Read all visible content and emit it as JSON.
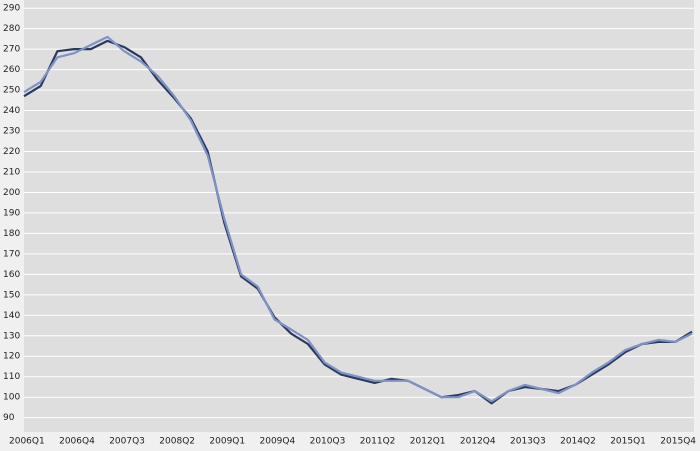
{
  "chart_data": {
    "type": "line",
    "categories": [
      "2006Q1",
      null,
      null,
      "2006Q4",
      null,
      null,
      "2007Q3",
      null,
      null,
      "2008Q2",
      null,
      null,
      "2009Q1",
      null,
      null,
      "2009Q4",
      null,
      null,
      "2010Q3",
      null,
      null,
      "2011Q2",
      null,
      null,
      "2012Q1",
      null,
      null,
      "2012Q4",
      null,
      null,
      "2013Q3",
      null,
      null,
      "2014Q2",
      null,
      null,
      "2015Q1",
      null,
      null,
      "2015Q4",
      null
    ],
    "series": [
      {
        "color": "#2b3a5c",
        "values": [
          247,
          252,
          269,
          270,
          270,
          274,
          271,
          266,
          255,
          246,
          236,
          220,
          185,
          159,
          153,
          139,
          131,
          126,
          116,
          111,
          109,
          107,
          109,
          108,
          104,
          100,
          101,
          103,
          97,
          103,
          105,
          104,
          103,
          106,
          111,
          116,
          122,
          126,
          127,
          127,
          132
        ]
      },
      {
        "color": "#7f93c4",
        "values": [
          249,
          254,
          266,
          268,
          272,
          276,
          269,
          264,
          257,
          247,
          235,
          218,
          187,
          160,
          154,
          138,
          133,
          128,
          117,
          112,
          110,
          108,
          108,
          108,
          104,
          100,
          100,
          103,
          98,
          103,
          106,
          104,
          102,
          106,
          112,
          117,
          123,
          126,
          128,
          127,
          131
        ]
      }
    ],
    "ylim": [
      83,
      294
    ],
    "yticks": [
      90,
      100,
      110,
      120,
      130,
      140,
      150,
      160,
      170,
      180,
      190,
      200,
      210,
      220,
      230,
      240,
      250,
      260,
      270,
      280,
      290
    ],
    "grid": true
  }
}
